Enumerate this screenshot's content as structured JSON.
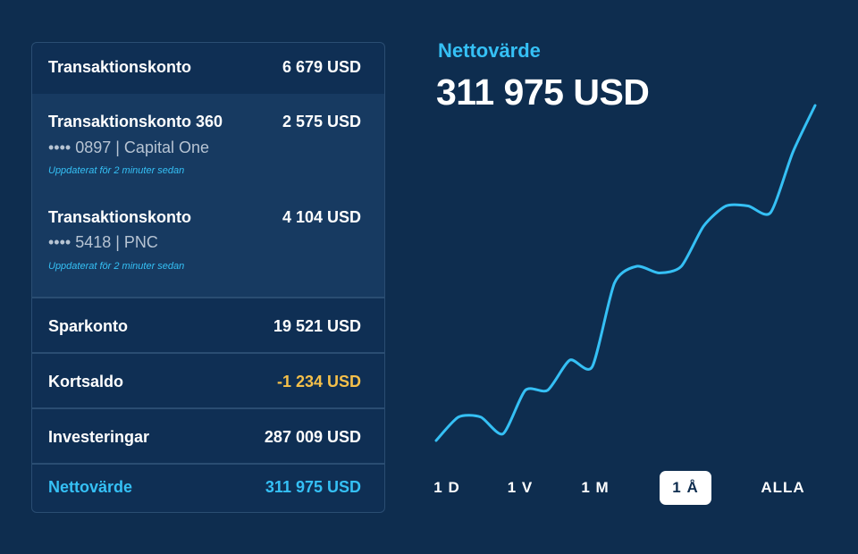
{
  "accounts": {
    "rows": [
      {
        "title": "Transaktionskonto",
        "amount": "6 679 USD"
      },
      {
        "title": "Transaktionskonto 360",
        "amount": "2 575 USD",
        "sub": "•••• 0897  |  Capital One",
        "updated": "Uppdaterat för 2 minuter sedan"
      },
      {
        "title": "Transaktionskonto",
        "amount": "4 104 USD",
        "sub": "•••• 5418  |   PNC",
        "updated": "Uppdaterat för 2 minuter sedan"
      },
      {
        "title": "Sparkonto",
        "amount": "19 521 USD"
      },
      {
        "title": "Kortsaldo",
        "amount": "-1 234 USD"
      },
      {
        "title": "Investeringar",
        "amount": "287 009 USD"
      },
      {
        "title": "Nettovärde",
        "amount": "311 975 USD"
      }
    ]
  },
  "networth": {
    "label": "Nettovärde",
    "value": "311 975 USD"
  },
  "chart_data": {
    "type": "line",
    "title": "",
    "xlabel": "",
    "ylabel": "",
    "grid": false,
    "series": [
      {
        "values": [
          0,
          7,
          7,
          2,
          15,
          15,
          24,
          22,
          47,
          52,
          50,
          52,
          64,
          70,
          70,
          68,
          86,
          100
        ]
      }
    ],
    "color": "#35c0f5"
  },
  "ranges": {
    "items": [
      "1 D",
      "1 V",
      "1 M",
      "1 Å",
      "ALLA"
    ],
    "active": "1 Å"
  },
  "colors": {
    "background": "#0e2d4f",
    "accent": "#35c0f5",
    "negative": "#f5c04a"
  }
}
